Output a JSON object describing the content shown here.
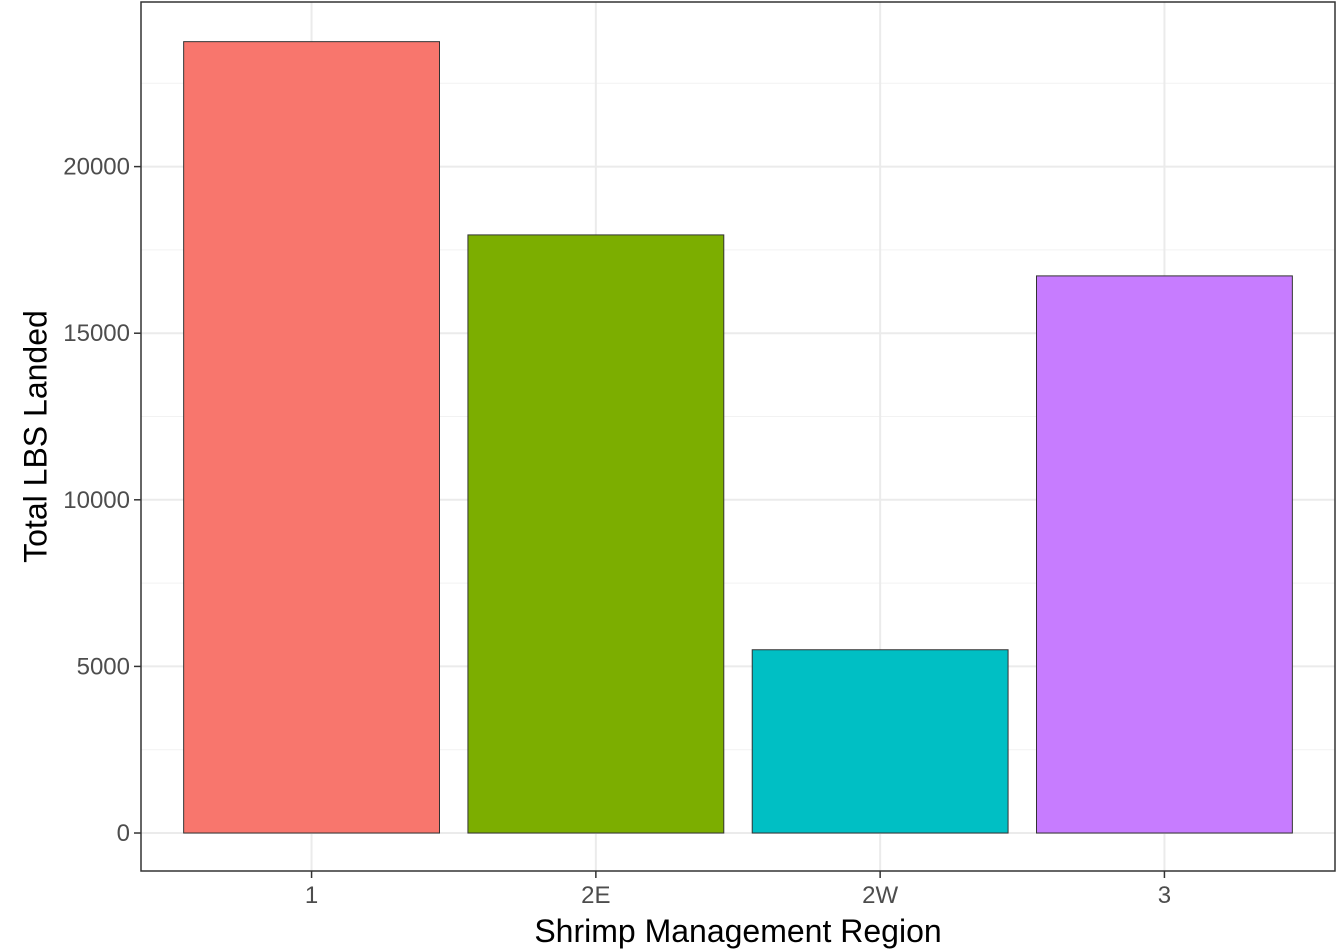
{
  "chart_data": {
    "type": "bar",
    "title": "",
    "xlabel": "Shrimp Management Region",
    "ylabel": "Total LBS Landed",
    "categories": [
      "1",
      "2E",
      "2W",
      "3"
    ],
    "values": [
      23750,
      17950,
      5500,
      16720
    ],
    "colors": [
      "#F8766D",
      "#7CAE00",
      "#00BFC4",
      "#C77CFF"
    ],
    "bar_outline": "#333333",
    "yticks": [
      0,
      5000,
      10000,
      15000,
      20000
    ],
    "ytick_labels": [
      "0",
      "5000",
      "10000",
      "15000",
      "20000"
    ],
    "ylim": [
      -1140,
      24940
    ],
    "grid": true,
    "legend": "none"
  }
}
